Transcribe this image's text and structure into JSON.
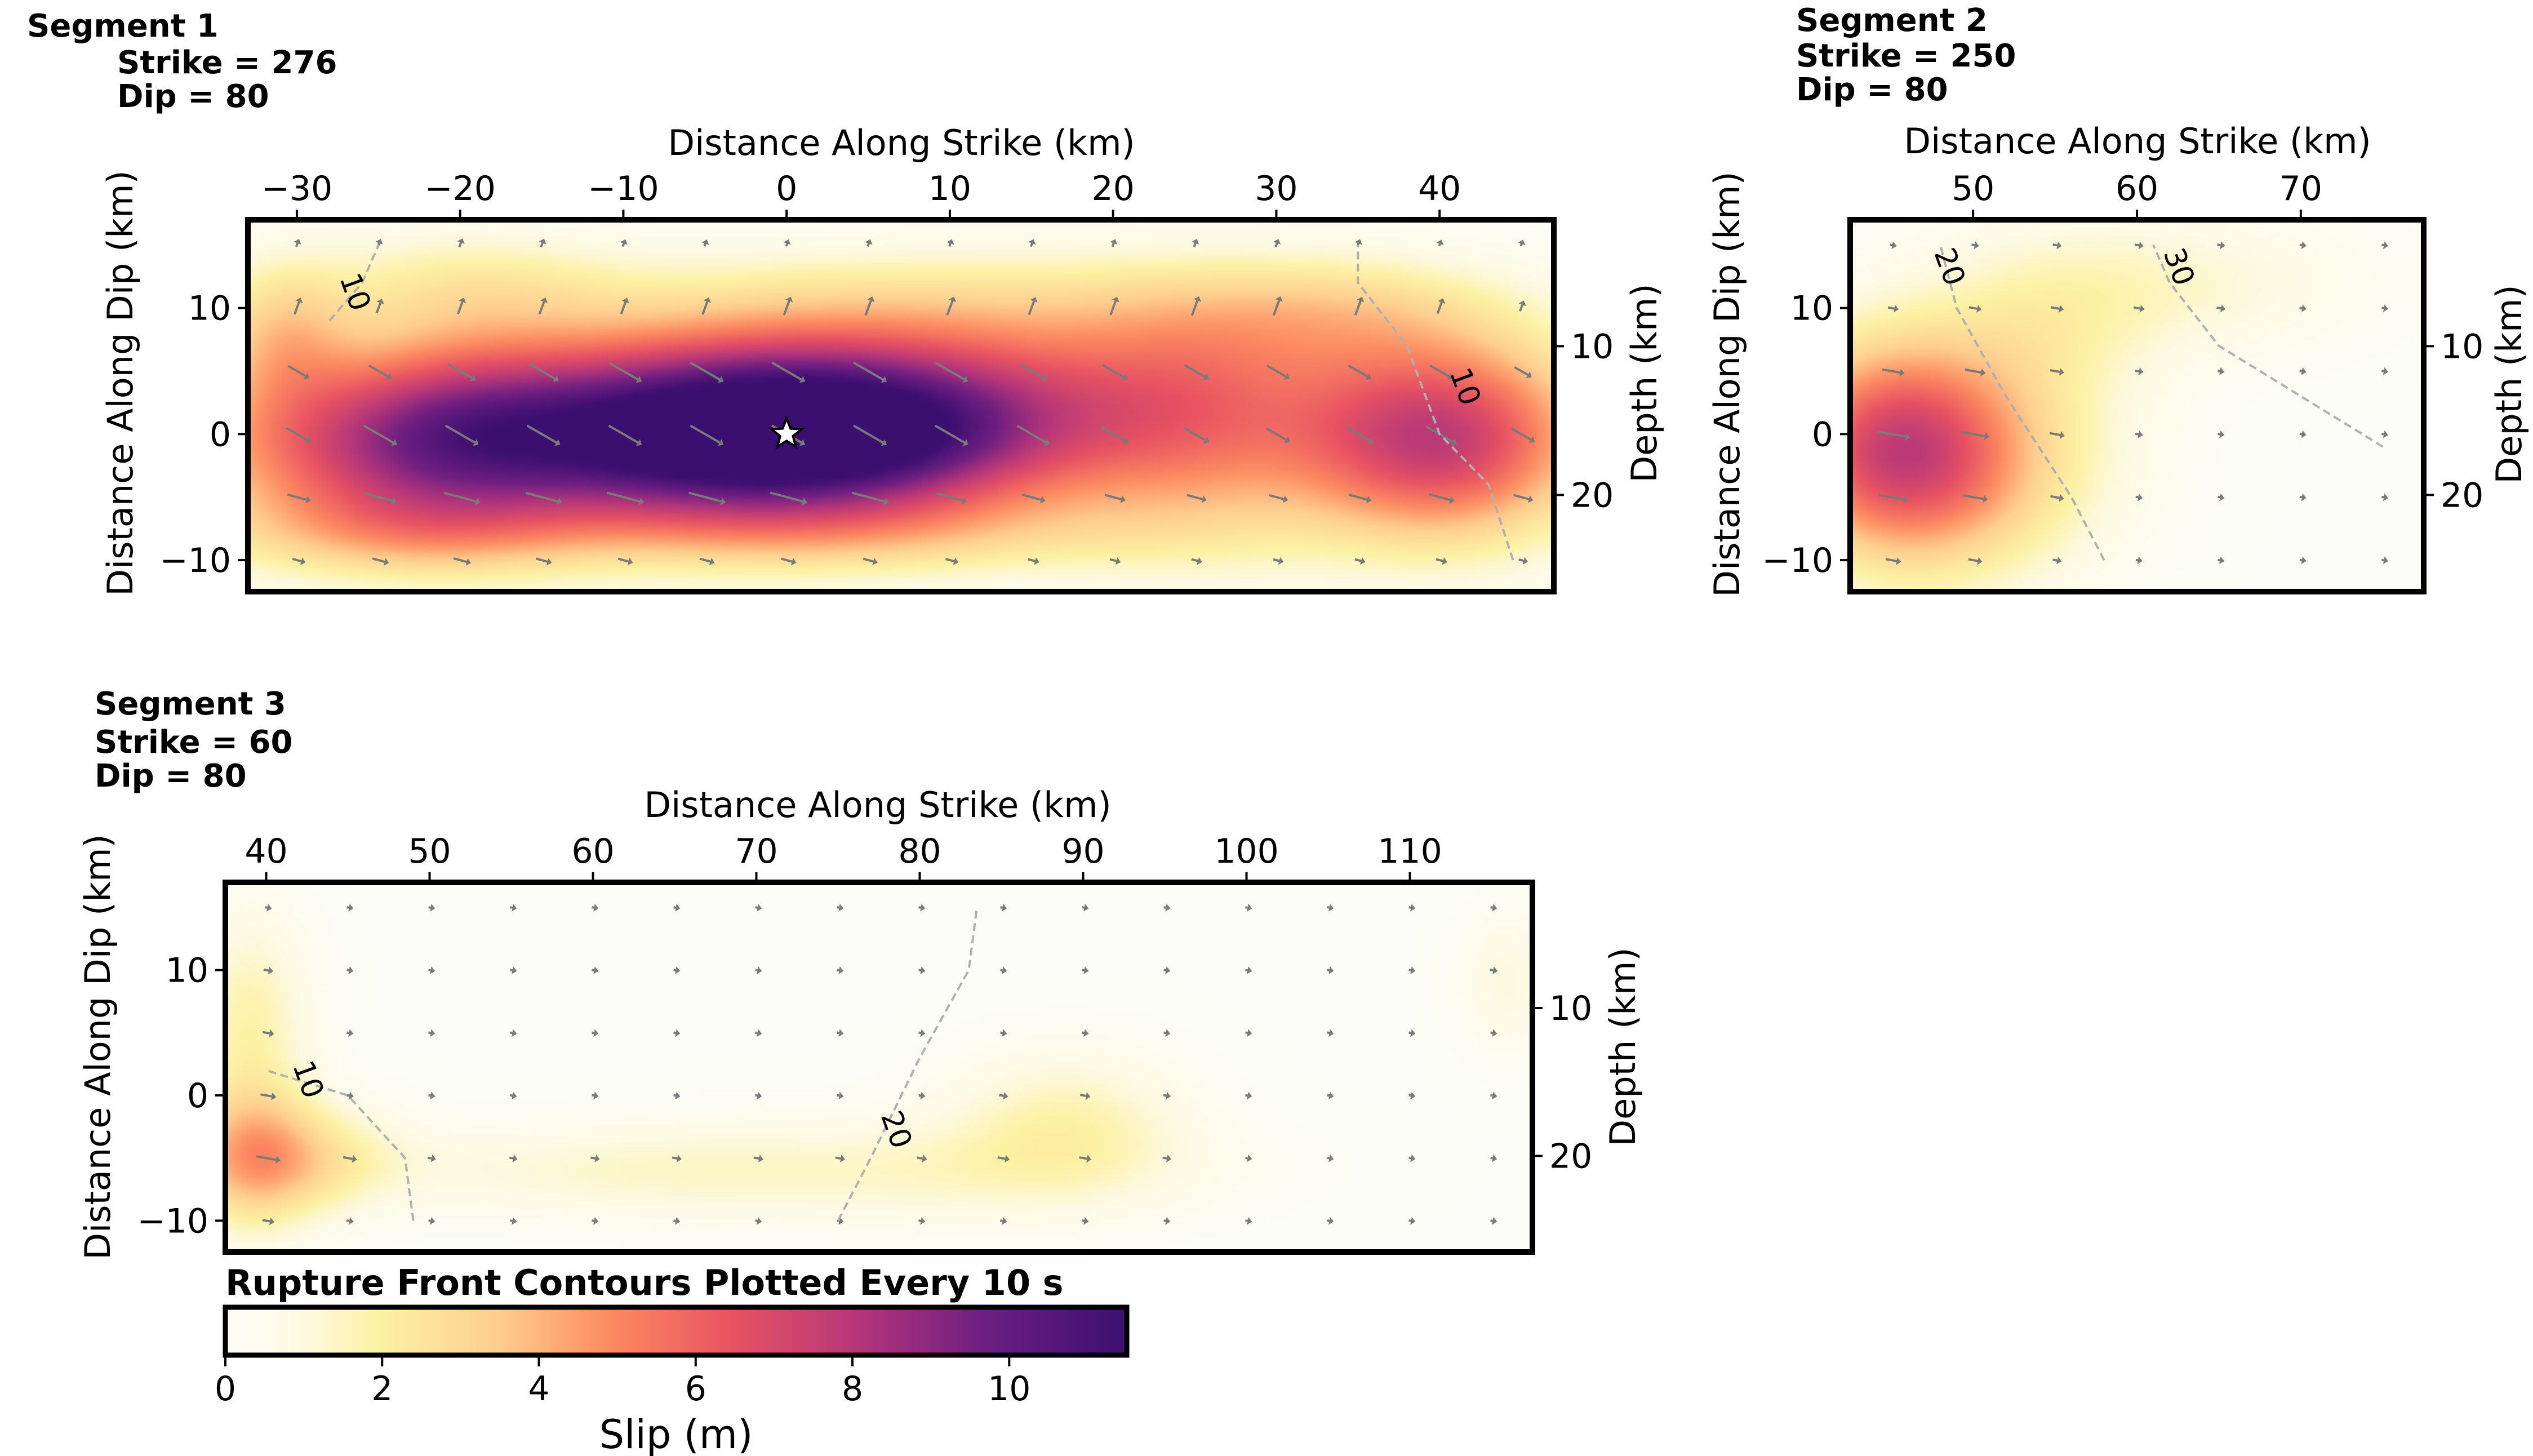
{
  "figure": {
    "colorbar_title": "Rupture Front Contours Plotted Every 10 s",
    "colorbar_label": "Slip (m)",
    "colorbar_ticks": [
      "0",
      "2",
      "4",
      "6",
      "8",
      "10"
    ],
    "colorbar_range": [
      0,
      11.5
    ],
    "colormap": "magma_r"
  },
  "chart_data": [
    {
      "type": "heatmap",
      "title": "Segment 1",
      "subtitle_lines": [
        "Strike = 276",
        "Dip = 80"
      ],
      "xlabel": "Distance Along Strike (km)",
      "ylabel": "Distance Along Dip (km)",
      "y2label": "Depth (km)",
      "xlim": [
        -33,
        47
      ],
      "ylim": [
        17,
        -12.5
      ],
      "y2lim": [
        1.5,
        26.5
      ],
      "xticks": [
        -30,
        -20,
        -10,
        0,
        10,
        20,
        30,
        40
      ],
      "xtick_labels": [
        "−30",
        "−20",
        "−10",
        "0",
        "10",
        "20",
        "30",
        "40"
      ],
      "yticks": [
        -10,
        0,
        10
      ],
      "ytick_labels": [
        "−10",
        "0",
        "10"
      ],
      "y2ticks": [
        10,
        20
      ],
      "y2tick_labels": [
        "10",
        "20"
      ],
      "slip_patches": [
        {
          "x": 3,
          "y": 0,
          "sx": 11,
          "sy": 4.5,
          "a": 11.5
        },
        {
          "x": -8,
          "y": -0.5,
          "sx": 10,
          "sy": 5,
          "a": 5.5
        },
        {
          "x": -26,
          "y": -1,
          "sx": 9,
          "sy": 5,
          "a": 5
        },
        {
          "x": -20,
          "y": 0,
          "sx": 6,
          "sy": 6,
          "a": 3
        },
        {
          "x": 40,
          "y": -0.5,
          "sx": 6.5,
          "sy": 5.5,
          "a": 7.5
        },
        {
          "x": 25,
          "y": 0.5,
          "sx": 6,
          "sy": 6.5,
          "a": 3.5
        },
        {
          "x": 10,
          "y": 6,
          "sx": 18,
          "sy": 4,
          "a": 2.5
        },
        {
          "x": -31,
          "y": 8,
          "sx": 3,
          "sy": 4,
          "a": 2.5
        },
        {
          "x": -20,
          "y": 12,
          "sx": 7,
          "sy": 3,
          "a": 1.5
        },
        {
          "x": 10,
          "y": 11,
          "sx": 16,
          "sy": 3,
          "a": 1.4
        },
        {
          "x": 34,
          "y": 10,
          "sx": 7,
          "sy": 3,
          "a": 1.6
        },
        {
          "x": 5,
          "y": -8,
          "sx": 14,
          "sy": 2.5,
          "a": 1.8
        },
        {
          "x": -25,
          "y": -8,
          "sx": 8,
          "sy": 2.5,
          "a": 1.8
        }
      ],
      "hypocenter": {
        "x": 0,
        "y": 0
      },
      "contours": [
        {
          "label": "10",
          "points": [
            [
              44.5,
              -10
            ],
            [
              43,
              -4
            ],
            [
              40,
              0
            ],
            [
              38,
              7
            ],
            [
              35,
              12
            ],
            [
              35,
              15
            ]
          ],
          "label_at": [
            41,
            3.5
          ]
        },
        {
          "label": "10",
          "points": [
            [
              -28,
              9
            ],
            [
              -26,
              12
            ],
            [
              -25,
              15
            ]
          ],
          "label_at": [
            -27,
            11
          ]
        }
      ]
    },
    {
      "type": "heatmap",
      "title": "Segment 2",
      "subtitle_lines": [
        "Strike = 250",
        "Dip = 80"
      ],
      "xlabel": "Distance Along Strike (km)",
      "ylabel": "Distance Along Dip (km)",
      "y2label": "Depth (km)",
      "xlim": [
        42.5,
        77.5
      ],
      "ylim": [
        17,
        -12.5
      ],
      "y2lim": [
        1.5,
        26.5
      ],
      "xticks": [
        50,
        60,
        70
      ],
      "xtick_labels": [
        "50",
        "60",
        "70"
      ],
      "yticks": [
        -10,
        0,
        10
      ],
      "ytick_labels": [
        "−10",
        "0",
        "10"
      ],
      "y2ticks": [
        10,
        20
      ],
      "y2tick_labels": [
        "10",
        "20"
      ],
      "slip_patches": [
        {
          "x": 45,
          "y": -1,
          "sx": 5,
          "sy": 6,
          "a": 6
        },
        {
          "x": 50,
          "y": -3,
          "sx": 6,
          "sy": 6,
          "a": 2.5
        },
        {
          "x": 54,
          "y": 8,
          "sx": 5,
          "sy": 5,
          "a": 1.3
        },
        {
          "x": 62,
          "y": 12,
          "sx": 8,
          "sy": 4,
          "a": 1.2
        }
      ],
      "contours": [
        {
          "label": "20",
          "points": [
            [
              58,
              -10
            ],
            [
              56,
              -5
            ],
            [
              52,
              3
            ],
            [
              49,
              10
            ],
            [
              48,
              15
            ]
          ],
          "label_at": [
            48,
            13
          ]
        },
        {
          "label": "30",
          "points": [
            [
              75,
              -1
            ],
            [
              70,
              3
            ],
            [
              65,
              7
            ],
            [
              62,
              12
            ],
            [
              61,
              15
            ]
          ],
          "label_at": [
            62,
            13
          ]
        }
      ]
    },
    {
      "type": "heatmap",
      "title": "Segment 3",
      "subtitle_lines": [
        "Strike = 60",
        "Dip = 80"
      ],
      "xlabel": "Distance Along Strike (km)",
      "ylabel": "Distance Along Dip (km)",
      "y2label": "Depth (km)",
      "xlim": [
        37.5,
        117.5
      ],
      "ylim": [
        17,
        -12.5
      ],
      "y2lim": [
        1.5,
        26.5
      ],
      "xticks": [
        40,
        50,
        60,
        70,
        80,
        90,
        100,
        110
      ],
      "xtick_labels": [
        "40",
        "50",
        "60",
        "70",
        "80",
        "90",
        "100",
        "110"
      ],
      "yticks": [
        -10,
        0,
        10
      ],
      "ytick_labels": [
        "−10",
        "0",
        "10"
      ],
      "y2ticks": [
        10,
        20
      ],
      "y2tick_labels": [
        "10",
        "20"
      ],
      "slip_patches": [
        {
          "x": 39,
          "y": -5,
          "sx": 3,
          "sy": 4,
          "a": 3.5
        },
        {
          "x": 43,
          "y": -5,
          "sx": 4,
          "sy": 3,
          "a": 1.8
        },
        {
          "x": 39,
          "y": 6,
          "sx": 2.5,
          "sy": 6,
          "a": 1.8
        },
        {
          "x": 89,
          "y": -2,
          "sx": 5,
          "sy": 4,
          "a": 1.6
        },
        {
          "x": 80,
          "y": -6,
          "sx": 12,
          "sy": 3,
          "a": 1.2
        },
        {
          "x": 60,
          "y": -6,
          "sx": 10,
          "sy": 2.5,
          "a": 1.0
        },
        {
          "x": 116,
          "y": 9,
          "sx": 2,
          "sy": 4,
          "a": 1.0
        }
      ],
      "contours": [
        {
          "label": "10",
          "points": [
            [
              49,
              -10
            ],
            [
              48.5,
              -5
            ],
            [
              45,
              0
            ],
            [
              40,
              2
            ]
          ],
          "label_at": [
            42,
            1
          ]
        },
        {
          "label": "20",
          "points": [
            [
              75,
              -10
            ],
            [
              77,
              -5
            ],
            [
              80,
              3
            ],
            [
              83,
              10
            ],
            [
              83.5,
              15
            ]
          ],
          "label_at": [
            78,
            -3
          ]
        }
      ]
    }
  ]
}
